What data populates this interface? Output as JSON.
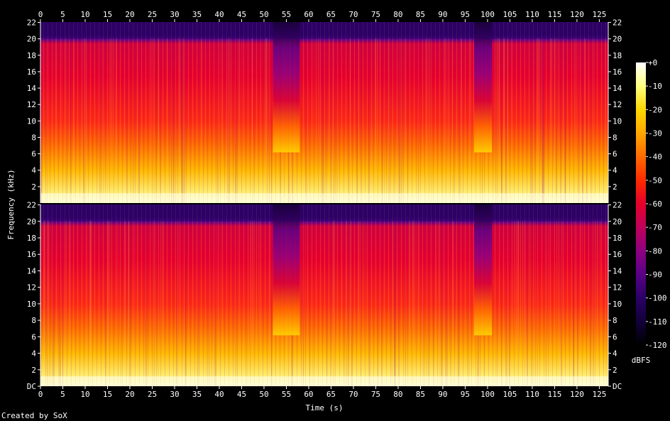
{
  "chart_data": {
    "type": "heatmap",
    "title": "",
    "xlabel": "Time (s)",
    "ylabel": "Frequency (kHz)",
    "footer": "Created by SoX",
    "x_ticks": [
      0,
      5,
      10,
      15,
      20,
      25,
      30,
      35,
      40,
      45,
      50,
      55,
      60,
      65,
      70,
      75,
      80,
      85,
      90,
      95,
      100,
      105,
      110,
      115,
      120,
      125
    ],
    "xlim": [
      0,
      127
    ],
    "y_ticks": [
      {
        "value": 0,
        "label": "DC"
      },
      {
        "value": 2,
        "label": "2"
      },
      {
        "value": 4,
        "label": "4"
      },
      {
        "value": 6,
        "label": "6"
      },
      {
        "value": 8,
        "label": "8"
      },
      {
        "value": 10,
        "label": "10"
      },
      {
        "value": 12,
        "label": "12"
      },
      {
        "value": 14,
        "label": "14"
      },
      {
        "value": 16,
        "label": "16"
      },
      {
        "value": 18,
        "label": "18"
      },
      {
        "value": 20,
        "label": "20"
      },
      {
        "value": 22,
        "label": "22"
      }
    ],
    "ylim": [
      0,
      22.05
    ],
    "channels": 2,
    "colorbar": {
      "unit": "dBFS",
      "range": [
        -120,
        0
      ],
      "ticks": [
        {
          "value": 0,
          "label": "+0"
        },
        {
          "value": -10,
          "label": "-10"
        },
        {
          "value": -20,
          "label": "-20"
        },
        {
          "value": -30,
          "label": "-30"
        },
        {
          "value": -40,
          "label": "-40"
        },
        {
          "value": -50,
          "label": "-50"
        },
        {
          "value": -60,
          "label": "-60"
        },
        {
          "value": -70,
          "label": "-70"
        },
        {
          "value": -80,
          "label": "-80"
        },
        {
          "value": -90,
          "label": "-90"
        },
        {
          "value": -100,
          "label": "-100"
        },
        {
          "value": -110,
          "label": "-110"
        },
        {
          "value": -120,
          "label": "-120"
        }
      ]
    },
    "lowpass_cutoff_khz": 20,
    "quiet_sections_s": [
      [
        52,
        58
      ],
      [
        97,
        101
      ]
    ],
    "colors": {
      "background": "#000000",
      "label": "#ffffff",
      "scale": [
        "#000000",
        "#12003a",
        "#2b0066",
        "#5a0088",
        "#8f0080",
        "#c0005a",
        "#e6002a",
        "#ff2a00",
        "#ff6a00",
        "#ffa800",
        "#ffd800",
        "#ffff80",
        "#ffffff"
      ]
    }
  }
}
